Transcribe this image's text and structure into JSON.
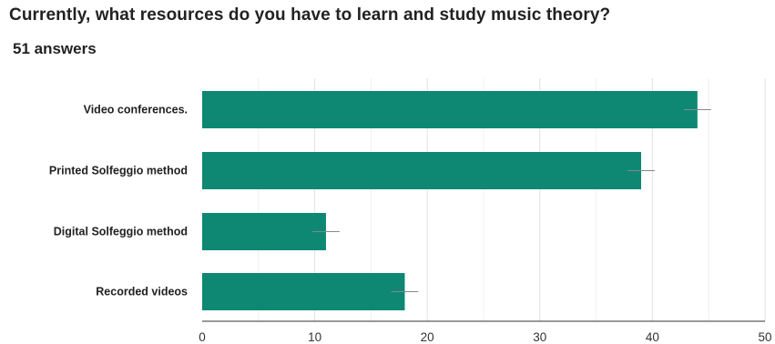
{
  "question": {
    "title": "Currently, what resources do you have to learn and study music theory?",
    "answers_count": "51 answers"
  },
  "colors": {
    "bar": "#0e8872",
    "grid": "#e6e6e6",
    "axis": "#333333",
    "error_bar": "#888888"
  },
  "chart_data": {
    "type": "bar",
    "orientation": "horizontal",
    "categories": [
      "Video  conferences.",
      "Printed Solfeggio method",
      "Digital Solfeggio method",
      "Recorded videos"
    ],
    "values": [
      44,
      39,
      11,
      18
    ],
    "error_bars": true,
    "xlim": [
      0,
      50
    ],
    "xticks": [
      0,
      10,
      20,
      30,
      40,
      50
    ],
    "title": "",
    "xlabel": "",
    "ylabel": "",
    "grid": true,
    "legend": "none"
  }
}
